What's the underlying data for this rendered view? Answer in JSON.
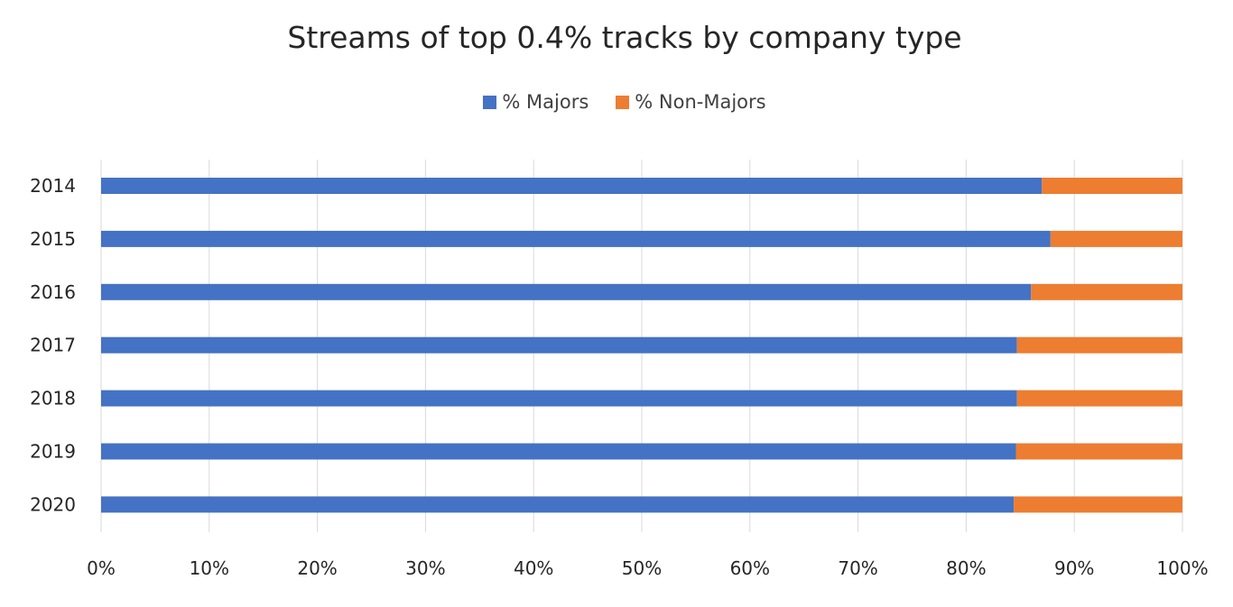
{
  "chart_data": {
    "type": "bar",
    "orientation": "horizontal",
    "stacked": true,
    "title": "Streams of top 0.4% tracks by company type",
    "categories": [
      "2014",
      "2015",
      "2016",
      "2017",
      "2018",
      "2019",
      "2020"
    ],
    "series": [
      {
        "name": "% Majors",
        "color": "#4472C4",
        "values": [
          87.0,
          87.8,
          86.0,
          84.7,
          84.7,
          84.6,
          84.4
        ]
      },
      {
        "name": "% Non-Majors",
        "color": "#ED7D31",
        "values": [
          13.0,
          12.2,
          14.0,
          15.3,
          15.3,
          15.4,
          15.6
        ]
      }
    ],
    "xlim": [
      0,
      100
    ],
    "xticks": [
      "0%",
      "10%",
      "20%",
      "30%",
      "40%",
      "50%",
      "60%",
      "70%",
      "80%",
      "90%",
      "100%"
    ],
    "grid": true,
    "legend_position": "top"
  }
}
